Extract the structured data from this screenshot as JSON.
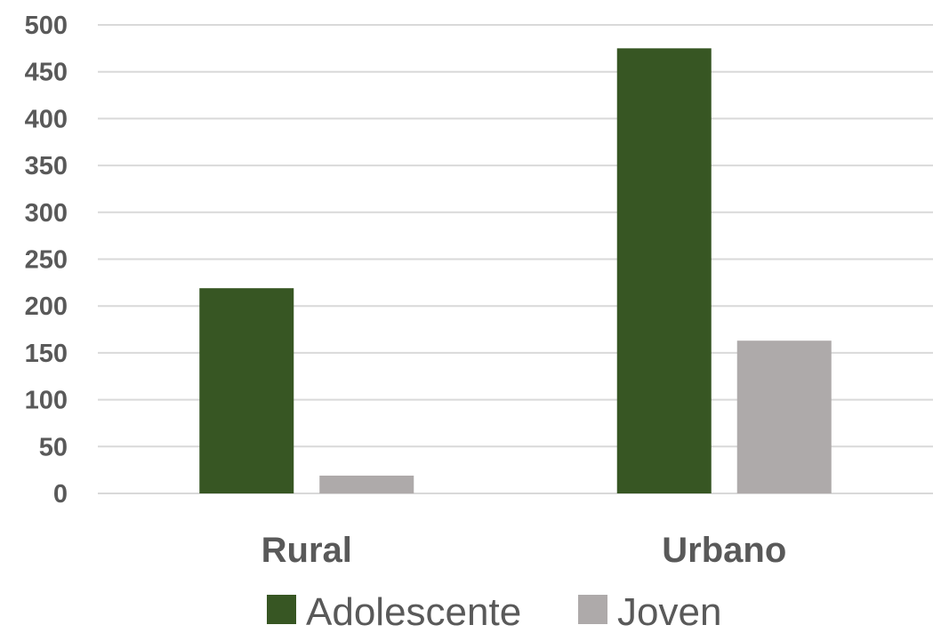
{
  "chart_data": {
    "type": "bar",
    "categories": [
      "Rural",
      "Urbano"
    ],
    "series": [
      {
        "name": "Adolescente",
        "values": [
          219,
          475
        ],
        "color": "#375623"
      },
      {
        "name": "Joven",
        "values": [
          19,
          163
        ],
        "color": "#aeaaaa"
      }
    ],
    "ylim": [
      0,
      500
    ],
    "yticks": [
      0,
      50,
      100,
      150,
      200,
      250,
      300,
      350,
      400,
      450,
      500
    ],
    "grid": true,
    "legend_position": "bottom"
  }
}
